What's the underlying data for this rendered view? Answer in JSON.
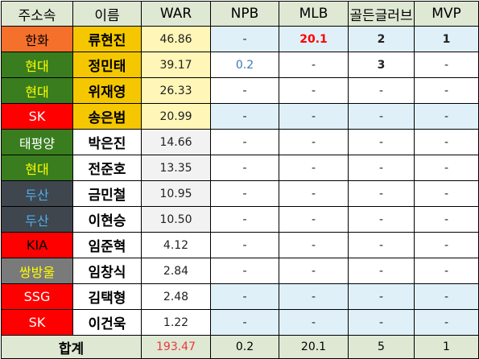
{
  "headers": [
    "주소속",
    "이름",
    "WAR",
    "NPB",
    "MLB",
    "골든글러브",
    "MVP"
  ],
  "colors": {
    "header_bg": "#dfe8d3",
    "name_highlight": "#f5c700",
    "war_highlight": "#fff6b8",
    "row_blue": "#dff0f8",
    "row_white": "#ffffff",
    "war_plain": "#f2f2f2",
    "team_hanwha": "#f4702b",
    "team_hyundai": "#3a7d1f",
    "team_red": "#ff0000",
    "team_taepyeongyang": "#3a7d1f",
    "team_doosan": "#3f464e",
    "team_ssangbangwool": "#7a7a7a",
    "npb_blue": "#3c7ab6",
    "mlb_red": "#ff0000",
    "total_war_red": "#e83a3a"
  },
  "rows": [
    {
      "team": "한화",
      "name": "류현진",
      "war": "46.86",
      "npb": "-",
      "mlb": "20.1",
      "gg": "2",
      "mvp": "1",
      "team_bg": "#f4702b",
      "team_fg": "#000000",
      "name_bg": "#f5c700",
      "war_bg": "#fff6b8",
      "stat_bg": "#dff0f8",
      "npb_fg": "#222222",
      "mlb_fg": "#ff0000",
      "mlb_bold": true,
      "gg_bold": true,
      "mvp_bold": true
    },
    {
      "team": "현대",
      "name": "정민태",
      "war": "39.17",
      "npb": "0.2",
      "mlb": "-",
      "gg": "3",
      "mvp": "-",
      "team_bg": "#3a7d1f",
      "team_fg": "#ffff00",
      "name_bg": "#f5c700",
      "war_bg": "#fff6b8",
      "stat_bg": "#ffffff",
      "npb_fg": "#3c7ab6",
      "mlb_fg": "#222222",
      "mlb_bold": false,
      "gg_bold": true,
      "mvp_bold": false
    },
    {
      "team": "현대",
      "name": "위재영",
      "war": "26.33",
      "npb": "-",
      "mlb": "-",
      "gg": "-",
      "mvp": "-",
      "team_bg": "#3a7d1f",
      "team_fg": "#ffff00",
      "name_bg": "#f5c700",
      "war_bg": "#fff6b8",
      "stat_bg": "#ffffff",
      "npb_fg": "#222222",
      "mlb_fg": "#222222",
      "mlb_bold": false,
      "gg_bold": false,
      "mvp_bold": false
    },
    {
      "team": "SK",
      "name": "송은범",
      "war": "20.99",
      "npb": "-",
      "mlb": "-",
      "gg": "-",
      "mvp": "-",
      "team_bg": "#ff0000",
      "team_fg": "#ffffff",
      "name_bg": "#f5c700",
      "war_bg": "#fff6b8",
      "stat_bg": "#dff0f8",
      "npb_fg": "#222222",
      "mlb_fg": "#222222",
      "mlb_bold": false,
      "gg_bold": false,
      "mvp_bold": false
    },
    {
      "team": "태평양",
      "name": "박은진",
      "war": "14.66",
      "npb": "-",
      "mlb": "-",
      "gg": "-",
      "mvp": "-",
      "team_bg": "#3a7d1f",
      "team_fg": "#ffffff",
      "name_bg": "#ffffff",
      "war_bg": "#f2f2f2",
      "stat_bg": "#ffffff",
      "npb_fg": "#222222",
      "mlb_fg": "#222222",
      "mlb_bold": false,
      "gg_bold": false,
      "mvp_bold": false
    },
    {
      "team": "현대",
      "name": "전준호",
      "war": "13.35",
      "npb": "-",
      "mlb": "-",
      "gg": "-",
      "mvp": "-",
      "team_bg": "#3a7d1f",
      "team_fg": "#ffff00",
      "name_bg": "#ffffff",
      "war_bg": "#f2f2f2",
      "stat_bg": "#ffffff",
      "npb_fg": "#222222",
      "mlb_fg": "#222222",
      "mlb_bold": false,
      "gg_bold": false,
      "mvp_bold": false
    },
    {
      "team": "두산",
      "name": "금민철",
      "war": "10.95",
      "npb": "-",
      "mlb": "-",
      "gg": "-",
      "mvp": "-",
      "team_bg": "#3f464e",
      "team_fg": "#4faee8",
      "name_bg": "#ffffff",
      "war_bg": "#f2f2f2",
      "stat_bg": "#ffffff",
      "npb_fg": "#222222",
      "mlb_fg": "#222222",
      "mlb_bold": false,
      "gg_bold": false,
      "mvp_bold": false
    },
    {
      "team": "두산",
      "name": "이현승",
      "war": "10.50",
      "npb": "-",
      "mlb": "-",
      "gg": "-",
      "mvp": "-",
      "team_bg": "#3f464e",
      "team_fg": "#4faee8",
      "name_bg": "#ffffff",
      "war_bg": "#f2f2f2",
      "stat_bg": "#ffffff",
      "npb_fg": "#222222",
      "mlb_fg": "#222222",
      "mlb_bold": false,
      "gg_bold": false,
      "mvp_bold": false
    },
    {
      "team": "KIA",
      "name": "임준혁",
      "war": "4.12",
      "npb": "-",
      "mlb": "-",
      "gg": "-",
      "mvp": "-",
      "team_bg": "#ff0000",
      "team_fg": "#000000",
      "name_bg": "#ffffff",
      "war_bg": "#ffffff",
      "stat_bg": "#ffffff",
      "npb_fg": "#222222",
      "mlb_fg": "#222222",
      "mlb_bold": false,
      "gg_bold": false,
      "mvp_bold": false
    },
    {
      "team": "쌍방울",
      "name": "임창식",
      "war": "2.84",
      "npb": "-",
      "mlb": "-",
      "gg": "-",
      "mvp": "-",
      "team_bg": "#7a7a7a",
      "team_fg": "#ffff00",
      "name_bg": "#ffffff",
      "war_bg": "#ffffff",
      "stat_bg": "#ffffff",
      "npb_fg": "#222222",
      "mlb_fg": "#222222",
      "mlb_bold": false,
      "gg_bold": false,
      "mvp_bold": false
    },
    {
      "team": "SSG",
      "name": "김택형",
      "war": "2.48",
      "npb": "-",
      "mlb": "-",
      "gg": "-",
      "mvp": "-",
      "team_bg": "#ff0000",
      "team_fg": "#ffffff",
      "name_bg": "#ffffff",
      "war_bg": "#ffffff",
      "stat_bg": "#dff0f8",
      "npb_fg": "#222222",
      "mlb_fg": "#222222",
      "mlb_bold": false,
      "gg_bold": false,
      "mvp_bold": false
    },
    {
      "team": "SK",
      "name": "이건욱",
      "war": "1.22",
      "npb": "-",
      "mlb": "-",
      "gg": "-",
      "mvp": "-",
      "team_bg": "#ff0000",
      "team_fg": "#ffffff",
      "name_bg": "#ffffff",
      "war_bg": "#ffffff",
      "stat_bg": "#dff0f8",
      "npb_fg": "#222222",
      "mlb_fg": "#222222",
      "mlb_bold": false,
      "gg_bold": false,
      "mvp_bold": false
    }
  ],
  "totals": {
    "label": "합계",
    "war": "193.47",
    "npb": "0.2",
    "mlb": "20.1",
    "gg": "5",
    "mvp": "1"
  }
}
